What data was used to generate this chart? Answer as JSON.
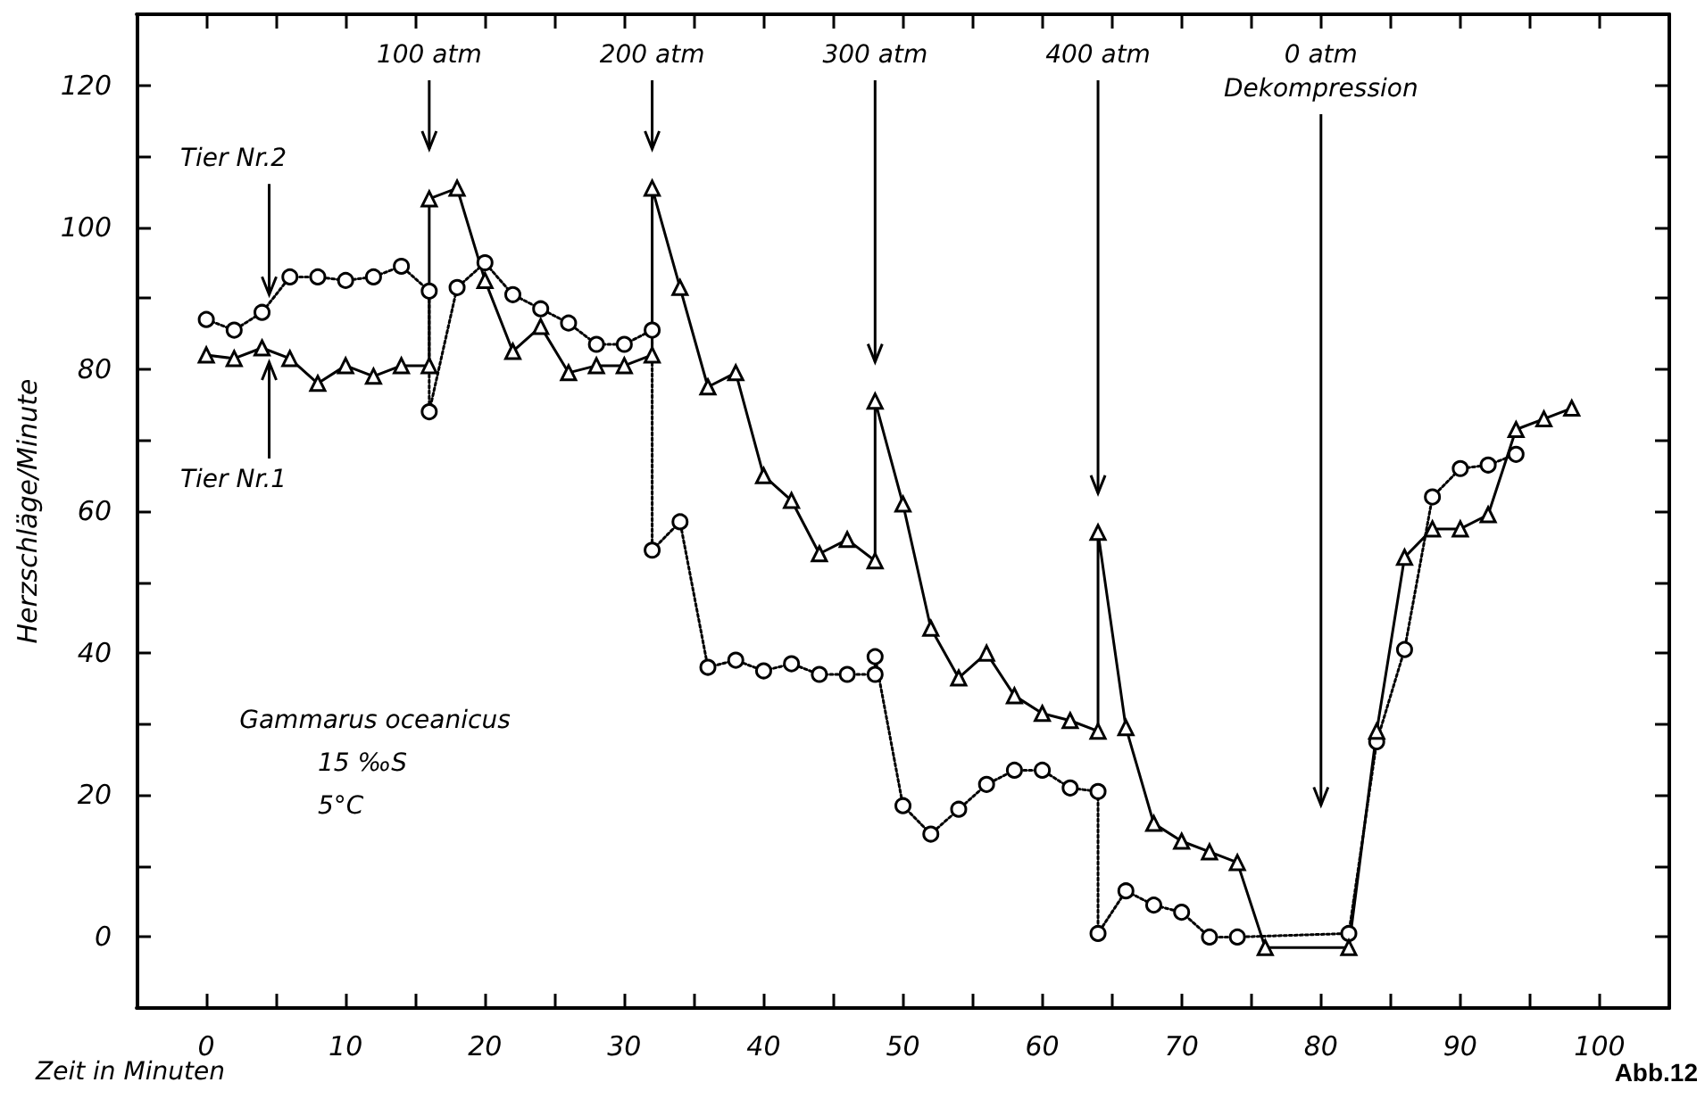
{
  "chart_data": {
    "type": "line",
    "xlabel": "Zeit in Minuten",
    "ylabel": "Herzschläge/Minute",
    "xlim": [
      -5,
      105
    ],
    "ylim": [
      -10,
      130
    ],
    "xticks": [
      0,
      {
        "value": 5,
        "label": null
      },
      10,
      {
        "value": 15,
        "label": null
      },
      20,
      {
        "value": 25,
        "label": null
      },
      30,
      {
        "value": 35,
        "label": null
      },
      40,
      {
        "value": 45,
        "label": null
      },
      50,
      {
        "value": 55,
        "label": null
      },
      60,
      {
        "value": 65,
        "label": null
      },
      70,
      {
        "value": 75,
        "label": null
      },
      80,
      {
        "value": 85,
        "label": null
      },
      90,
      {
        "value": 95,
        "label": null
      },
      100
    ],
    "yticks": [
      0,
      {
        "value": 10,
        "label": null
      },
      20,
      {
        "value": 30,
        "label": null
      },
      40,
      {
        "value": 50,
        "label": null
      },
      60,
      {
        "value": 70,
        "label": null
      },
      80,
      {
        "value": 90,
        "label": null
      },
      100,
      {
        "value": 110,
        "label": null
      },
      120
    ],
    "grid": false,
    "legend": false,
    "series": [
      {
        "name": "Tier Nr.2",
        "color": "#000000",
        "marker": "circle",
        "line_style": "dotted",
        "x": [
          0,
          2,
          4,
          6,
          8,
          10,
          12,
          14,
          16,
          16,
          18,
          20,
          22,
          24,
          26,
          28,
          30,
          32,
          32,
          34,
          36,
          38,
          40,
          42,
          44,
          46,
          48,
          48,
          50,
          52,
          54,
          56,
          58,
          60,
          62,
          64,
          64,
          66,
          68,
          70,
          72,
          74,
          82,
          84,
          86,
          88,
          90,
          92,
          94
        ],
        "values": [
          87,
          85.5,
          88,
          93,
          93,
          92.5,
          93,
          94.5,
          91,
          74,
          91.5,
          95,
          90.5,
          88.5,
          86.5,
          83.5,
          83.5,
          85.5,
          54.5,
          58.5,
          38,
          39,
          37.5,
          38.5,
          37,
          37,
          37,
          39.5,
          18.5,
          14.5,
          18,
          21.5,
          23.5,
          23.5,
          21,
          20.5,
          0.5,
          6.5,
          4.5,
          3.5,
          0,
          0,
          0.5,
          27.5,
          40.5,
          62,
          66,
          66.5,
          68
        ]
      },
      {
        "name": "Tier Nr.1",
        "color": "#000000",
        "marker": "triangle",
        "line_style": "solid",
        "x": [
          0,
          2,
          4,
          6,
          8,
          10,
          12,
          14,
          16,
          16,
          18,
          20,
          22,
          24,
          26,
          28,
          30,
          32,
          32,
          34,
          36,
          38,
          40,
          42,
          44,
          46,
          48,
          48,
          50,
          52,
          54,
          56,
          58,
          60,
          62,
          64,
          64,
          66,
          68,
          70,
          72,
          74,
          76,
          82,
          84,
          86,
          88,
          90,
          92,
          94,
          96,
          98
        ],
        "values": [
          82,
          81.5,
          83,
          81.5,
          78,
          80.5,
          79,
          80.5,
          80.5,
          104,
          105.5,
          92.5,
          82.5,
          86,
          79.5,
          80.5,
          80.5,
          82,
          105.5,
          91.5,
          77.5,
          79.5,
          65,
          61.5,
          54,
          56,
          53,
          75.5,
          61,
          43.5,
          36.5,
          40,
          34,
          31.5,
          30.5,
          29,
          57,
          29.5,
          16,
          13.5,
          12,
          10.5,
          -1.5,
          -1.5,
          29,
          53.5,
          57.5,
          57.5,
          59.5,
          71.5,
          73,
          74.5
        ]
      }
    ],
    "ref_lines": [
      {
        "axis": "x",
        "value": 16,
        "label": "100 atm"
      },
      {
        "axis": "x",
        "value": 32,
        "label": "200 atm"
      },
      {
        "axis": "x",
        "value": 48,
        "label": "300 atm"
      },
      {
        "axis": "x",
        "value": 64,
        "label": "400 atm"
      },
      {
        "axis": "x",
        "value": 80,
        "label": "0 atm\nDekompression"
      }
    ],
    "annotations": [
      "Gammarus oceanicus",
      "15 ‰S",
      "5°C",
      "Abb.12"
    ]
  }
}
